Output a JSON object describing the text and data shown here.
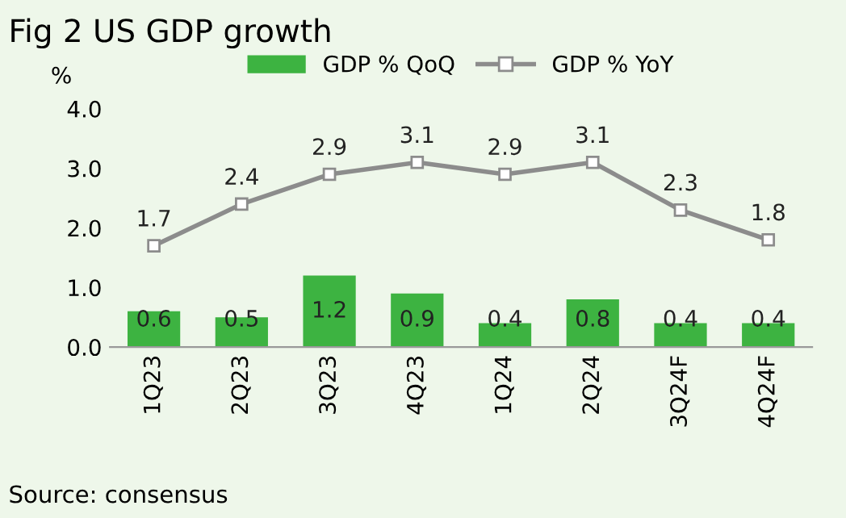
{
  "chart_data": {
    "type": "bar",
    "title": "Fig 2 US GDP growth",
    "ylabel": "%",
    "categories": [
      "1Q23",
      "2Q23",
      "3Q23",
      "4Q23",
      "1Q24",
      "2Q24",
      "3Q24F",
      "4Q24F"
    ],
    "series": [
      {
        "name": "GDP % QoQ",
        "color": "#3db341",
        "values": [
          0.6,
          0.5,
          1.2,
          0.9,
          0.4,
          0.8,
          0.4,
          0.4
        ]
      },
      {
        "name": "GDP % YoY",
        "type": "line",
        "color": "#8c8c8c",
        "marker": "square",
        "values": [
          1.7,
          2.4,
          2.9,
          3.1,
          2.9,
          3.1,
          2.3,
          1.8
        ]
      }
    ],
    "ylim": [
      0,
      4
    ],
    "yticks": [
      {
        "value": 0,
        "label": "0.0"
      },
      {
        "value": 1,
        "label": "1.0"
      },
      {
        "value": 2,
        "label": "2.0"
      },
      {
        "value": 3,
        "label": "3.0"
      },
      {
        "value": 4,
        "label": "4.0"
      }
    ],
    "data_labels": true,
    "grid": false,
    "legend": "top",
    "annotations": [
      "Source: consensus"
    ]
  }
}
